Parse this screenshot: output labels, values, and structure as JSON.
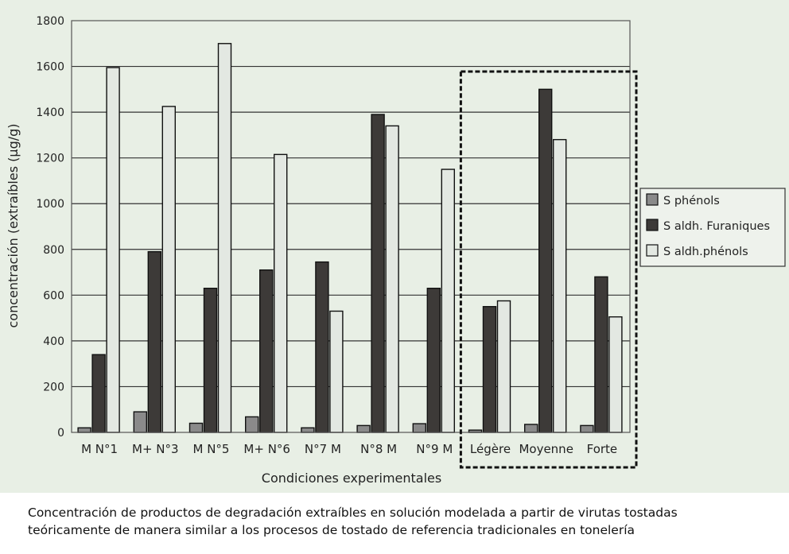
{
  "chart_data": {
    "type": "bar",
    "categories": [
      "M N°1",
      "M+ N°3",
      "M N°5",
      "M+ N°6",
      "N°7 M",
      "N°8 M",
      "N°9 M",
      "Légère",
      "Moyenne",
      "Forte"
    ],
    "series": [
      {
        "name": "S phénols",
        "values": [
          20,
          90,
          40,
          68,
          20,
          30,
          38,
          10,
          35,
          30
        ]
      },
      {
        "name": "S aldh. Furaniques",
        "values": [
          340,
          790,
          630,
          710,
          745,
          1390,
          630,
          550,
          1500,
          680
        ]
      },
      {
        "name": "S aldh.phénols",
        "values": [
          1595,
          1425,
          1700,
          1215,
          530,
          1340,
          1150,
          575,
          1280,
          505
        ]
      }
    ],
    "title": "",
    "xlabel": "Condiciones experimentales",
    "ylabel": "concentración (extraíbles (µg/g)",
    "ylim": [
      0,
      1800
    ],
    "yticks": [
      0,
      200,
      400,
      600,
      800,
      1000,
      1200,
      1400,
      1600,
      1800
    ],
    "grid": true,
    "legend": "right",
    "highlight_group": [
      "Légère",
      "Moyenne",
      "Forte"
    ],
    "colors": [
      "#8a8a8a",
      "#3d3a38",
      "#e3e8e2"
    ]
  },
  "caption": {
    "line1": "Concentración de productos de degradación extraíbles en solución modelada a partir de virutas tostadas",
    "line2": "teóricamente de manera similar a los procesos de tostado de referencia tradicionales en tonelería"
  }
}
